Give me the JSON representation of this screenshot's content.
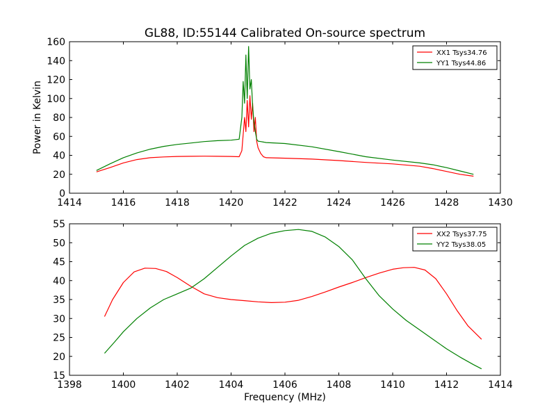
{
  "title": "GL88, ID:55144 Calibrated On-source spectrum",
  "colors": {
    "red": "#ff0000",
    "green": "#008000"
  },
  "chart_data": [
    {
      "type": "line",
      "ylabel": "Power in Kelvin",
      "xlabel": "",
      "xlim": [
        1414,
        1430
      ],
      "ylim": [
        0,
        160
      ],
      "xticks": [
        "1414",
        "1416",
        "1418",
        "1420",
        "1422",
        "1424",
        "1426",
        "1428",
        "1430"
      ],
      "yticks": [
        "0",
        "20",
        "40",
        "60",
        "80",
        "100",
        "120",
        "140",
        "160"
      ],
      "legend_position": "top-right",
      "series": [
        {
          "name": "XX1 Tsys34.76",
          "color": "#ff0000",
          "x": [
            1415.0,
            1415.5,
            1416.0,
            1416.5,
            1417.0,
            1417.5,
            1418.0,
            1418.5,
            1419.0,
            1419.5,
            1420.0,
            1420.3,
            1420.4,
            1420.45,
            1420.5,
            1420.55,
            1420.6,
            1420.65,
            1420.7,
            1420.75,
            1420.8,
            1420.85,
            1420.9,
            1420.95,
            1421.0,
            1421.1,
            1421.2,
            1421.3,
            1422.0,
            1423.0,
            1424.0,
            1425.0,
            1426.0,
            1427.0,
            1427.5,
            1428.0,
            1428.5,
            1429.0
          ],
          "y": [
            22.5,
            27,
            32,
            35.5,
            37.5,
            38.3,
            38.8,
            39,
            39.1,
            39,
            38.8,
            38.5,
            45,
            62,
            80,
            65,
            98,
            70,
            103,
            78,
            95,
            65,
            80,
            55,
            48,
            42,
            38.5,
            37.5,
            37,
            36,
            34.5,
            32.5,
            31,
            28.5,
            26,
            23,
            20,
            18
          ]
        },
        {
          "name": "YY1 Tsys44.86",
          "color": "#008000",
          "x": [
            1415.0,
            1415.5,
            1416.0,
            1416.5,
            1417.0,
            1417.5,
            1418.0,
            1418.5,
            1419.0,
            1419.5,
            1420.0,
            1420.3,
            1420.4,
            1420.45,
            1420.5,
            1420.55,
            1420.6,
            1420.65,
            1420.7,
            1420.75,
            1420.8,
            1420.85,
            1420.9,
            1420.95,
            1421.0,
            1421.1,
            1421.2,
            1421.3,
            1422.0,
            1423.0,
            1424.0,
            1425.0,
            1426.0,
            1427.0,
            1427.5,
            1428.0,
            1428.5,
            1429.0
          ],
          "y": [
            24,
            31,
            37.5,
            42.5,
            46.5,
            49.5,
            51.5,
            53,
            54.5,
            55.5,
            56,
            57,
            80,
            118,
            95,
            146,
            100,
            155,
            110,
            120,
            92,
            75,
            65,
            57,
            55,
            54.5,
            54,
            53.5,
            52.5,
            49,
            44,
            38.5,
            35,
            32,
            30,
            27,
            23.5,
            20
          ]
        }
      ]
    },
    {
      "type": "line",
      "ylabel": "",
      "xlabel": "Frequency (MHz)",
      "xlim": [
        1398,
        1414
      ],
      "ylim": [
        15,
        55
      ],
      "xticks": [
        "1398",
        "1400",
        "1402",
        "1404",
        "1406",
        "1408",
        "1410",
        "1412",
        "1414"
      ],
      "yticks": [
        "15",
        "20",
        "25",
        "30",
        "35",
        "40",
        "45",
        "50",
        "55"
      ],
      "legend_position": "top-right",
      "series": [
        {
          "name": "XX2 Tsys37.75",
          "color": "#ff0000",
          "x": [
            1399.3,
            1399.6,
            1400.0,
            1400.4,
            1400.8,
            1401.2,
            1401.6,
            1402.0,
            1402.5,
            1403.0,
            1403.5,
            1404.0,
            1404.5,
            1405.0,
            1405.5,
            1406.0,
            1406.5,
            1407.0,
            1407.5,
            1408.0,
            1408.5,
            1409.0,
            1409.5,
            1410.0,
            1410.4,
            1410.8,
            1411.2,
            1411.6,
            1412.0,
            1412.4,
            1412.8,
            1413.3
          ],
          "y": [
            30.5,
            35,
            39.5,
            42.3,
            43.3,
            43.2,
            42.4,
            40.8,
            38.5,
            36.5,
            35.5,
            35,
            34.7,
            34.4,
            34.2,
            34.3,
            34.8,
            35.8,
            37,
            38.3,
            39.5,
            40.8,
            42,
            43,
            43.4,
            43.5,
            42.8,
            40.5,
            36.5,
            32,
            28,
            24.5
          ]
        },
        {
          "name": "YY2 Tsys38.05",
          "color": "#008000",
          "x": [
            1399.3,
            1399.7,
            1400.0,
            1400.5,
            1401.0,
            1401.5,
            1402.0,
            1402.5,
            1403.0,
            1403.5,
            1404.0,
            1404.5,
            1405.0,
            1405.5,
            1406.0,
            1406.5,
            1407.0,
            1407.5,
            1408.0,
            1408.5,
            1409.0,
            1409.5,
            1410.0,
            1410.5,
            1411.0,
            1411.5,
            1412.0,
            1412.5,
            1413.0,
            1413.3
          ],
          "y": [
            20.8,
            24,
            26.5,
            30,
            32.8,
            35,
            36.5,
            38,
            40.5,
            43.5,
            46.5,
            49.3,
            51.2,
            52.5,
            53.2,
            53.5,
            53,
            51.5,
            49,
            45.5,
            40.5,
            36,
            32.5,
            29.5,
            27,
            24.5,
            22,
            19.8,
            17.8,
            16.7
          ]
        }
      ]
    }
  ]
}
